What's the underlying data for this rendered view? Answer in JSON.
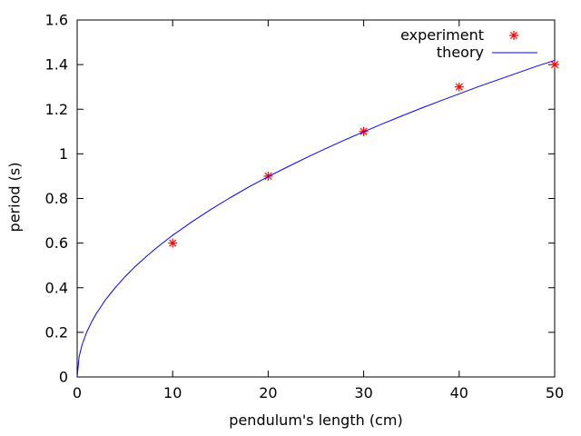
{
  "chart_data": {
    "type": "scatter",
    "title": "",
    "xlabel": "pendulum's length (cm)",
    "ylabel": "period (s)",
    "xlim": [
      0,
      50
    ],
    "ylim": [
      0,
      1.6
    ],
    "x_ticks": [
      0,
      10,
      20,
      30,
      40,
      50
    ],
    "x_tick_labels": [
      "0",
      "10",
      "20",
      "30",
      "40",
      "50"
    ],
    "y_ticks": [
      0,
      0.2,
      0.4,
      0.6,
      0.8,
      1,
      1.2,
      1.4,
      1.6
    ],
    "y_tick_labels": [
      "0",
      "0.2",
      "0.4",
      "0.6",
      "0.8",
      "1",
      "1.2",
      "1.4",
      "1.6"
    ],
    "grid": false,
    "legend": {
      "position": "top-right-inside",
      "entries": [
        "experiment",
        "theory"
      ]
    },
    "series": [
      {
        "name": "experiment",
        "type": "scatter",
        "marker": "asterisk",
        "color": "#ff0000",
        "x": [
          10,
          20,
          30,
          40,
          50
        ],
        "y": [
          0.6,
          0.9,
          1.1,
          1.3,
          1.4
        ]
      },
      {
        "name": "theory",
        "type": "line",
        "color": "#0000ff",
        "x": [
          0,
          0.2,
          0.5,
          1,
          1.5,
          2,
          3,
          4,
          5,
          6,
          7,
          8,
          9,
          10,
          12,
          14,
          16,
          18,
          20,
          22,
          24,
          26,
          28,
          30,
          32,
          34,
          36,
          38,
          40,
          42,
          44,
          46,
          48,
          50
        ],
        "y": [
          0,
          0.09,
          0.142,
          0.201,
          0.246,
          0.284,
          0.348,
          0.401,
          0.449,
          0.492,
          0.531,
          0.568,
          0.602,
          0.635,
          0.695,
          0.751,
          0.803,
          0.852,
          0.898,
          0.941,
          0.983,
          1.023,
          1.062,
          1.099,
          1.135,
          1.17,
          1.204,
          1.237,
          1.269,
          1.301,
          1.331,
          1.361,
          1.391,
          1.419
        ]
      }
    ],
    "colors": {
      "background": "#ffffff",
      "axis": "#000000",
      "text": "#000000",
      "experiment": "#ff0000",
      "theory": "#0000ff"
    }
  }
}
